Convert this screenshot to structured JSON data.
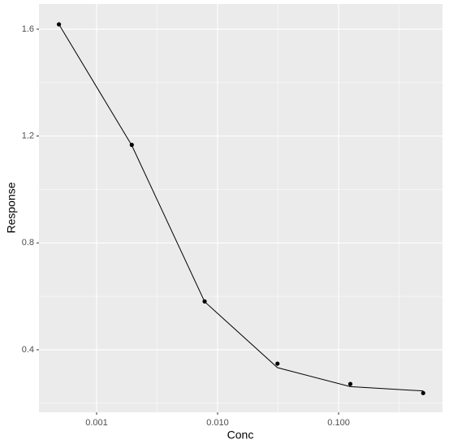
{
  "chart_data": {
    "type": "line",
    "x_label": "Conc",
    "y_label": "Response",
    "x": [
      0.00048828125,
      0.001953125,
      0.0078125,
      0.03125,
      0.125,
      0.5
    ],
    "series": [
      {
        "mode": "points",
        "color": "#000000",
        "values": [
          1.618,
          1.167,
          0.581,
          0.348,
          0.272,
          0.238
        ]
      },
      {
        "mode": "line",
        "color": "#000000",
        "values": [
          1.618,
          1.165,
          0.58,
          0.333,
          0.262,
          0.246
        ]
      }
    ],
    "xlog": true,
    "xlim": [
      0.000334,
      0.722
    ],
    "ylim": [
      0.166,
      1.694
    ],
    "xticks": [
      {
        "value": 0.001,
        "label": "0.001"
      },
      {
        "value": 0.01,
        "label": "0.010"
      },
      {
        "value": 0.1,
        "label": "0.100"
      }
    ],
    "yticks": [
      0.4,
      0.8,
      1.2,
      1.6
    ],
    "grid": true,
    "panel_color": "#ebebeb",
    "grid_color": "#ffffff"
  }
}
